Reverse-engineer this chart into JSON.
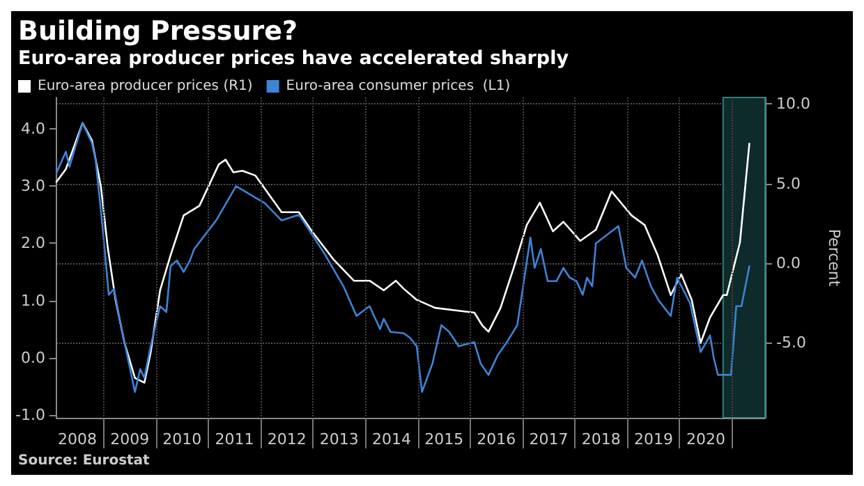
{
  "chart_data": {
    "type": "line",
    "title": "Building Pressure?",
    "subtitle": "Euro-area producer prices have accelerated sharply",
    "y2label": "Percent",
    "annotations": [
      "Source: Eurostat"
    ],
    "series": [
      {
        "name": "Euro-area producer prices (R1)",
        "color": "#ffffff",
        "axis": "y2",
        "x": [
          2008.1,
          2008.28,
          2008.6,
          2008.78,
          2008.95,
          2009.08,
          2009.23,
          2009.4,
          2009.6,
          2009.78,
          2009.9,
          2010.08,
          2010.28,
          2010.53,
          2010.83,
          2011.2,
          2011.33,
          2011.48,
          2011.65,
          2011.9,
          2012.4,
          2012.73,
          2012.98,
          2013.4,
          2013.78,
          2014.08,
          2014.35,
          2014.58,
          2014.73,
          2014.98,
          2015.33,
          2015.83,
          2016.08,
          2016.23,
          2016.35,
          2016.58,
          2016.83,
          2017.08,
          2017.33,
          2017.58,
          2017.78,
          2018.1,
          2018.4,
          2018.7,
          2019.08,
          2019.33,
          2019.58,
          2019.83,
          2020.03,
          2020.23,
          2020.4,
          2020.58,
          2020.83,
          2020.9,
          2021.15,
          2021.33
        ],
        "values": [
          5.1,
          5.9,
          8.8,
          7.7,
          4.8,
          1.0,
          -2.3,
          -5.0,
          -7.2,
          -7.5,
          -5.6,
          -1.7,
          0.5,
          3.0,
          3.6,
          6.2,
          6.5,
          5.7,
          5.8,
          5.5,
          3.2,
          3.2,
          2.0,
          0.2,
          -1.1,
          -1.1,
          -1.7,
          -1.1,
          -1.6,
          -2.3,
          -2.8,
          -3.0,
          -3.1,
          -3.9,
          -4.3,
          -2.8,
          -0.3,
          2.4,
          3.8,
          2.0,
          2.6,
          1.4,
          2.1,
          4.5,
          3.0,
          2.4,
          0.5,
          -2.0,
          -0.7,
          -2.3,
          -5.0,
          -3.4,
          -2.0,
          -2.0,
          1.3,
          7.5
        ]
      },
      {
        "name": "Euro-area consumer prices  (L1)",
        "color": "#3d84d6",
        "x": [
          2008.1,
          2008.28,
          2008.35,
          2008.6,
          2008.78,
          2008.85,
          2008.98,
          2009.1,
          2009.2,
          2009.33,
          2009.45,
          2009.6,
          2009.7,
          2009.78,
          2009.9,
          2010.08,
          2010.2,
          2010.28,
          2010.4,
          2010.53,
          2010.65,
          2010.73,
          2011.15,
          2011.53,
          2012.08,
          2012.4,
          2012.73,
          2012.95,
          2013.23,
          2013.58,
          2013.83,
          2014.08,
          2014.28,
          2014.35,
          2014.48,
          2014.73,
          2014.85,
          2014.98,
          2015.08,
          2015.28,
          2015.45,
          2015.6,
          2015.78,
          2016.08,
          2016.2,
          2016.35,
          2016.53,
          2016.7,
          2016.9,
          2017.15,
          2017.23,
          2017.35,
          2017.48,
          2017.65,
          2017.78,
          2017.9,
          2018.03,
          2018.15,
          2018.23,
          2018.33,
          2018.4,
          2018.83,
          2018.98,
          2019.15,
          2019.28,
          2019.45,
          2019.6,
          2019.83,
          2019.95,
          2020.2,
          2020.4,
          2020.58,
          2020.65,
          2020.73,
          2020.98,
          2021.08,
          2021.18,
          2021.33
        ],
        "values": [
          3.23,
          3.6,
          3.34,
          4.1,
          3.75,
          3.45,
          2.3,
          1.1,
          1.2,
          0.57,
          0.05,
          -0.6,
          -0.2,
          -0.35,
          0.2,
          0.9,
          0.8,
          1.6,
          1.7,
          1.5,
          1.7,
          1.9,
          2.4,
          3.0,
          2.7,
          2.4,
          2.5,
          2.2,
          1.8,
          1.25,
          0.73,
          0.9,
          0.5,
          0.68,
          0.45,
          0.43,
          0.35,
          0.2,
          -0.6,
          -0.1,
          0.57,
          0.45,
          0.2,
          0.27,
          -0.1,
          -0.3,
          0.05,
          0.27,
          0.57,
          2.1,
          1.57,
          1.9,
          1.34,
          1.34,
          1.57,
          1.4,
          1.34,
          1.1,
          1.4,
          1.25,
          2.0,
          2.3,
          1.57,
          1.4,
          1.7,
          1.25,
          1.0,
          0.73,
          1.4,
          0.95,
          0.1,
          0.39,
          0.0,
          -0.3,
          -0.3,
          0.9,
          0.9,
          1.6
        ]
      }
    ],
    "xlim": [
      2008.1,
      2021.63
    ],
    "xticks": [
      {
        "value": 2008.5,
        "label": "2008"
      },
      {
        "value": 2009,
        "label": null
      },
      {
        "value": 2009.5,
        "label": "2009"
      },
      {
        "value": 2010,
        "label": null
      },
      {
        "value": 2010.5,
        "label": "2010"
      },
      {
        "value": 2011,
        "label": null
      },
      {
        "value": 2011.5,
        "label": "2011"
      },
      {
        "value": 2012,
        "label": null
      },
      {
        "value": 2012.5,
        "label": "2012"
      },
      {
        "value": 2013,
        "label": null
      },
      {
        "value": 2013.5,
        "label": "2013"
      },
      {
        "value": 2014,
        "label": null
      },
      {
        "value": 2014.5,
        "label": "2014"
      },
      {
        "value": 2015,
        "label": null
      },
      {
        "value": 2015.5,
        "label": "2015"
      },
      {
        "value": 2016,
        "label": null
      },
      {
        "value": 2016.5,
        "label": "2016"
      },
      {
        "value": 2017,
        "label": null
      },
      {
        "value": 2017.5,
        "label": "2017"
      },
      {
        "value": 2018,
        "label": null
      },
      {
        "value": 2018.5,
        "label": "2018"
      },
      {
        "value": 2019,
        "label": null
      },
      {
        "value": 2019.5,
        "label": "2019"
      },
      {
        "value": 2020,
        "label": null
      },
      {
        "value": 2020.5,
        "label": "2020"
      },
      {
        "value": 2021,
        "label": null
      }
    ],
    "ylim": [
      -1.05,
      4.55
    ],
    "yticks": [
      {
        "value": -1,
        "label": "-1.0"
      },
      {
        "value": 0,
        "label": "0.0"
      },
      {
        "value": 1,
        "label": "1.0"
      },
      {
        "value": 2,
        "label": "2.0"
      },
      {
        "value": 3,
        "label": "3.0"
      },
      {
        "value": 4,
        "label": "4.0"
      }
    ],
    "y2lim": [
      -9.7,
      10.4
    ],
    "y2ticks": [
      {
        "value": -5,
        "label": "-5.0"
      },
      {
        "value": 0,
        "label": "0.0"
      },
      {
        "value": 5,
        "label": "5.0"
      },
      {
        "value": 10,
        "label": "10.0"
      }
    ],
    "bands": [
      {
        "axis": "x",
        "from": 2020.83,
        "to": 2021.63,
        "color": "#0e2a2a"
      }
    ],
    "grid": true,
    "legend": "top left",
    "marker": "none",
    "line_style": "solid"
  }
}
